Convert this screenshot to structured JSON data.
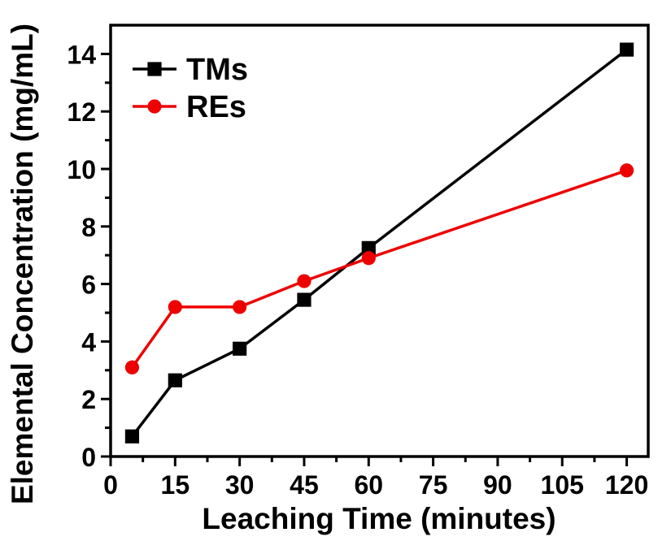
{
  "figure": {
    "background": "#ffffff",
    "frame_color": "#000000"
  },
  "chart_data": {
    "type": "line",
    "title": "",
    "xlabel": "Leaching Time (minutes)",
    "ylabel": "Elemental Concentration (mg/mL)",
    "x": [
      5,
      15,
      30,
      45,
      60,
      120
    ],
    "series": [
      {
        "name": "TMs",
        "color": "#000000",
        "marker": "square",
        "values": [
          0.7,
          2.65,
          3.75,
          5.45,
          7.25,
          14.15
        ]
      },
      {
        "name": "REs",
        "color": "#ee0000",
        "marker": "circle",
        "values": [
          3.1,
          5.2,
          5.2,
          6.1,
          6.9,
          9.95
        ]
      }
    ],
    "xlim": [
      0,
      125
    ],
    "ylim": [
      0,
      15
    ],
    "xticks": [
      0,
      15,
      30,
      45,
      60,
      75,
      90,
      105,
      120
    ],
    "yticks": [
      0,
      2,
      4,
      6,
      8,
      10,
      12,
      14
    ],
    "x_minor_step": 7.5,
    "y_minor_step": 1,
    "grid": false,
    "legend_position": "top-left",
    "legend_border": false
  }
}
